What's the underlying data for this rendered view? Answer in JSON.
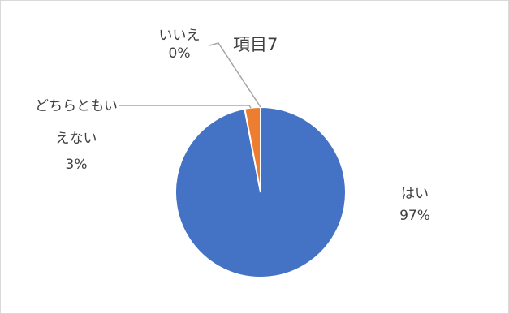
{
  "chart_data": {
    "type": "pie",
    "title": "項目7",
    "categories": [
      "はい",
      "どちらともいえない",
      "いいえ"
    ],
    "values": [
      97,
      3,
      0
    ],
    "data_labels": [
      {
        "name": "はい",
        "pct": "97%"
      },
      {
        "name": "どちらともいえない",
        "pct": "3%"
      },
      {
        "name": "いいえ",
        "pct": "0%"
      }
    ],
    "colors": [
      "#4472c4",
      "#ed7d31",
      "#a5a5a5"
    ],
    "start_angle": "12 o'clock",
    "direction": "clockwise"
  }
}
